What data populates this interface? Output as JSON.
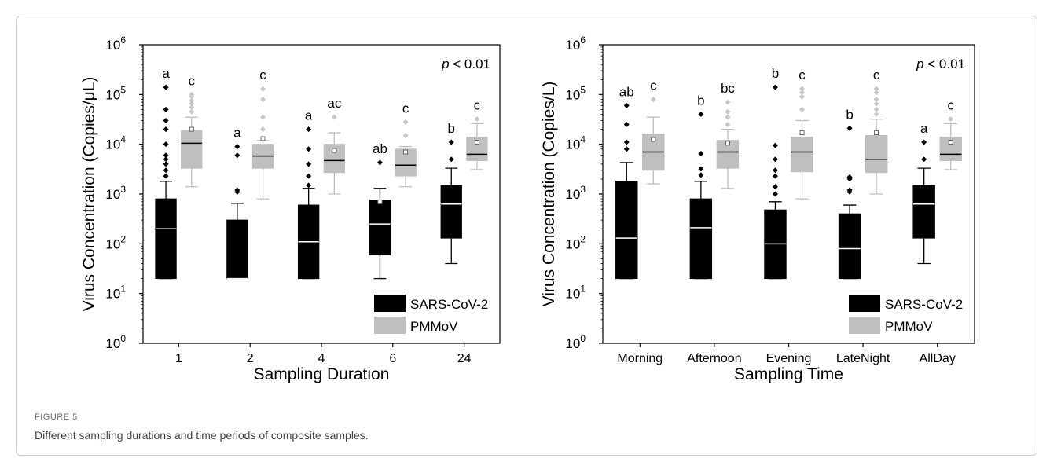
{
  "figure": {
    "label": "FIGURE 5",
    "caption": "Different sampling durations and time periods of composite samples."
  },
  "legend": {
    "series_a": "SARS-CoV-2",
    "series_b": "PMMoV"
  },
  "colors": {
    "sars": "#000000",
    "pmmov": "#bfbfbf",
    "pmmov_outlier": "#c8c8c8"
  },
  "chart_data": [
    {
      "type": "box",
      "xlabel": "Sampling Duration",
      "ylabel": "Virus Concentration (Copies/μL)",
      "yscale": "log",
      "ylim": [
        1,
        1000000
      ],
      "yticks": [
        "10",
        "10",
        "10",
        "10",
        "10",
        "10",
        "10"
      ],
      "ytick_exponents": [
        "0",
        "1",
        "2",
        "3",
        "4",
        "5",
        "6"
      ],
      "annotation_prefix": "p",
      "annotation_suffix": " < 0.01",
      "legend_position": "bottom-right",
      "categories": [
        "1",
        "2",
        "4",
        "6",
        "24"
      ],
      "series": [
        {
          "name": "SARS-CoV-2",
          "boxes": [
            {
              "q1": 20,
              "median": 200,
              "q3": 800,
              "whisker_low": 20,
              "whisker_high": 1800,
              "mean": null,
              "outliers": [
                2300,
                3000,
                4000,
                5000,
                6000,
                10000,
                20000,
                30000,
                50000,
                140000
              ],
              "letter": "a"
            },
            {
              "q1": 20,
              "median": 20,
              "q3": 300,
              "whisker_low": 20,
              "whisker_high": 650,
              "mean": null,
              "outliers": [
                1100,
                1200,
                6000,
                9000
              ],
              "letter": "a"
            },
            {
              "q1": 20,
              "median": 110,
              "q3": 600,
              "whisker_low": 20,
              "whisker_high": 1300,
              "mean": null,
              "outliers": [
                1500,
                2300,
                4000,
                8000,
                20000
              ],
              "letter": "a"
            },
            {
              "q1": 60,
              "median": 250,
              "q3": 750,
              "whisker_low": 20,
              "whisker_high": 1300,
              "mean": 700,
              "outliers": [
                4300
              ],
              "letter": "ab"
            },
            {
              "q1": 130,
              "median": 630,
              "q3": 1500,
              "whisker_low": 40,
              "whisker_high": 3300,
              "mean": null,
              "outliers": [
                5000,
                11000
              ],
              "letter": "b"
            }
          ]
        },
        {
          "name": "PMMoV",
          "boxes": [
            {
              "q1": 3300,
              "median": 10500,
              "q3": 19000,
              "whisker_low": 1400,
              "whisker_high": 35000,
              "mean": 20000,
              "outliers": [
                45000,
                55000,
                65000,
                75000,
                90000,
                100000
              ],
              "letter": "c"
            },
            {
              "q1": 3300,
              "median": 5800,
              "q3": 10000,
              "whisker_low": 800,
              "whisker_high": 12000,
              "mean": 13000,
              "outliers": [
                20000,
                35000,
                80000,
                130000
              ],
              "letter": "c"
            },
            {
              "q1": 2700,
              "median": 4700,
              "q3": 10000,
              "whisker_low": 1000,
              "whisker_high": 17000,
              "mean": 7500,
              "outliers": [
                35000
              ],
              "letter": "ac"
            },
            {
              "q1": 2300,
              "median": 3800,
              "q3": 8000,
              "whisker_low": 1400,
              "whisker_high": 9000,
              "mean": 7000,
              "outliers": [
                15000,
                28000
              ],
              "letter": "c"
            },
            {
              "q1": 4700,
              "median": 6300,
              "q3": 14000,
              "whisker_low": 3100,
              "whisker_high": 26000,
              "mean": 11000,
              "outliers": [
                32000
              ],
              "letter": "c"
            }
          ]
        }
      ]
    },
    {
      "type": "box",
      "xlabel": "Sampling Time",
      "ylabel": "Virus Concentration (Copies/L)",
      "yscale": "log",
      "ylim": [
        1,
        1000000
      ],
      "yticks": [
        "10",
        "10",
        "10",
        "10",
        "10",
        "10",
        "10"
      ],
      "ytick_exponents": [
        "0",
        "1",
        "2",
        "3",
        "4",
        "5",
        "6"
      ],
      "annotation_prefix": "p",
      "annotation_suffix": " < 0.01",
      "legend_position": "bottom-right",
      "categories": [
        "Morning",
        "Afternoon",
        "Evening",
        "LateNight",
        "AllDay"
      ],
      "series": [
        {
          "name": "SARS-CoV-2",
          "boxes": [
            {
              "q1": 20,
              "median": 130,
              "q3": 1800,
              "whisker_low": 20,
              "whisker_high": 4300,
              "mean": null,
              "outliers": [
                8000,
                11000,
                25000,
                60000
              ],
              "letter": "ab"
            },
            {
              "q1": 20,
              "median": 210,
              "q3": 800,
              "whisker_low": 20,
              "whisker_high": 1800,
              "mean": null,
              "outliers": [
                2400,
                3200,
                6500,
                40000
              ],
              "letter": "b"
            },
            {
              "q1": 20,
              "median": 100,
              "q3": 480,
              "whisker_low": 20,
              "whisker_high": 700,
              "mean": null,
              "outliers": [
                1000,
                1400,
                2300,
                3000,
                5000,
                9500,
                140000
              ],
              "letter": "b"
            },
            {
              "q1": 20,
              "median": 80,
              "q3": 400,
              "whisker_low": 20,
              "whisker_high": 600,
              "mean": null,
              "outliers": [
                1100,
                1200,
                2000,
                2200,
                21000
              ],
              "letter": "b"
            },
            {
              "q1": 130,
              "median": 630,
              "q3": 1500,
              "whisker_low": 40,
              "whisker_high": 3300,
              "mean": null,
              "outliers": [
                5000,
                11000
              ],
              "letter": "a"
            }
          ]
        },
        {
          "name": "PMMoV",
          "boxes": [
            {
              "q1": 3000,
              "median": 7000,
              "q3": 16000,
              "whisker_low": 1600,
              "whisker_high": 35000,
              "mean": 12500,
              "outliers": [
                80000
              ],
              "letter": "c"
            },
            {
              "q1": 3300,
              "median": 7000,
              "q3": 12000,
              "whisker_low": 1300,
              "whisker_high": 20000,
              "mean": 10500,
              "outliers": [
                25000,
                35000,
                45000,
                70000
              ],
              "letter": "bc"
            },
            {
              "q1": 2800,
              "median": 7000,
              "q3": 14000,
              "whisker_low": 800,
              "whisker_high": 30000,
              "mean": 17000,
              "outliers": [
                50000,
                90000,
                110000,
                130000
              ],
              "letter": "c"
            },
            {
              "q1": 2700,
              "median": 5000,
              "q3": 15000,
              "whisker_low": 1000,
              "whisker_high": 32000,
              "mean": 17000,
              "outliers": [
                40000,
                50000,
                65000,
                80000,
                110000,
                130000
              ],
              "letter": "c"
            },
            {
              "q1": 4700,
              "median": 6300,
              "q3": 14000,
              "whisker_low": 3100,
              "whisker_high": 26000,
              "mean": 11000,
              "outliers": [
                32000
              ],
              "letter": "c"
            }
          ]
        }
      ]
    }
  ]
}
